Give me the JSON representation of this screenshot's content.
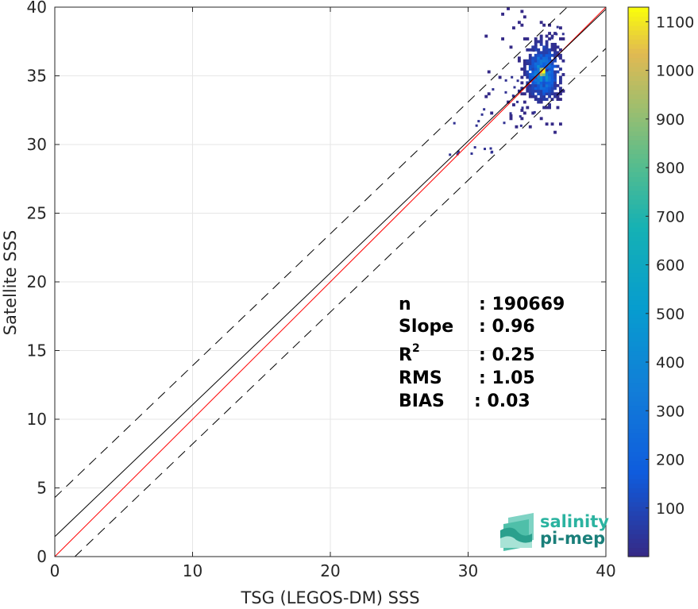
{
  "chart_data": {
    "type": "heatmap",
    "xlabel": "TSG (LEGOS-DM) SSS",
    "ylabel": "Satellite SSS",
    "xlim": [
      0,
      40
    ],
    "ylim": [
      0,
      40
    ],
    "xticks": [
      0,
      10,
      20,
      30,
      40
    ],
    "yticks": [
      0,
      5,
      10,
      15,
      20,
      25,
      30,
      35,
      40
    ],
    "grid": true,
    "colorbar": {
      "range": [
        0,
        1130
      ],
      "ticks": [
        100,
        200,
        300,
        400,
        500,
        600,
        700,
        800,
        900,
        1000,
        1100
      ],
      "colormap": "parula",
      "placement": "right"
    },
    "reference_lines": [
      {
        "name": "identity",
        "slope": 1,
        "intercept": 0,
        "color": "#ff0000",
        "style": "solid"
      },
      {
        "name": "fit",
        "slope": 0.96,
        "intercept": 1.45,
        "color": "#000000",
        "style": "solid"
      },
      {
        "name": "upper-bound",
        "slope": 0.96,
        "intercept": 4.3,
        "color": "#000000",
        "style": "dashed"
      },
      {
        "name": "lower-bound",
        "slope": 0.96,
        "intercept": -1.4,
        "color": "#000000",
        "style": "dashed"
      }
    ],
    "density_cluster": {
      "center": [
        35.3,
        35.2
      ],
      "x_range": [
        28.5,
        37.0
      ],
      "y_range": [
        28.0,
        40.0
      ],
      "peak_count": 1130
    },
    "stats": [
      {
        "label": "n",
        "value": ": 190669"
      },
      {
        "label": "Slope",
        "value": ": 0.96"
      },
      {
        "label": "R",
        "sup": "2",
        "value": ": 0.25"
      },
      {
        "label": "RMS",
        "value": ": 1.05"
      },
      {
        "label": "BIAS",
        "value": ": 0.03"
      }
    ]
  },
  "logo": {
    "line1": "salinity",
    "line2": "pi-mep"
  }
}
